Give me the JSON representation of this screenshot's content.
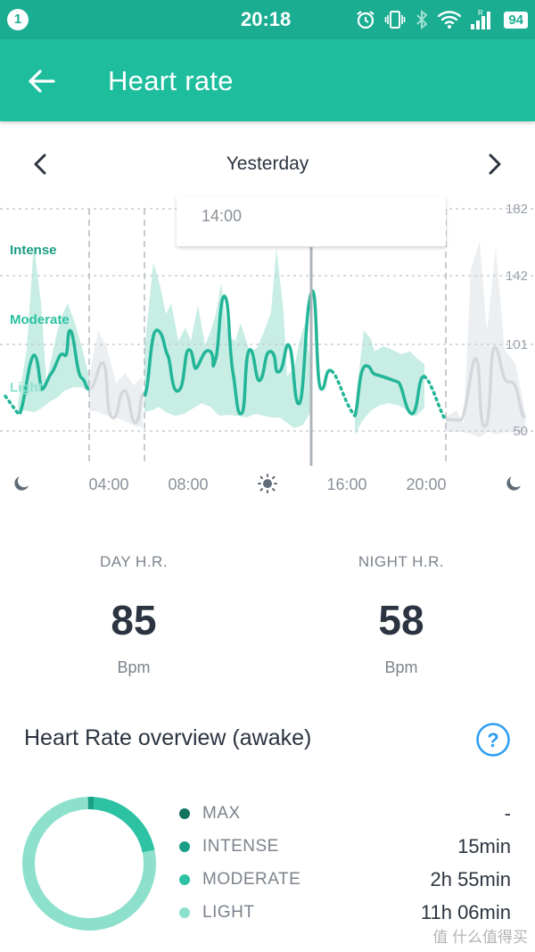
{
  "status_bar": {
    "notification_count": "1",
    "time": "20:18",
    "battery": "94"
  },
  "header": {
    "title": "Heart rate"
  },
  "date_nav": {
    "label": "Yesterday"
  },
  "chart_data": {
    "type": "line",
    "zones": [
      "Intense",
      "Moderate",
      "Light"
    ],
    "y_ticks": [
      "182",
      "142",
      "101",
      "50"
    ],
    "x_ticks": [
      "04:00",
      "08:00",
      "16:00",
      "20:00"
    ],
    "tooltip": "14:00",
    "legend_icons": [
      "moon-icon",
      "sun-icon",
      "moon-icon"
    ],
    "colors": {
      "line": "#22b597",
      "band": "#c7ede4",
      "night": "#d4d8dc",
      "grid": "#c9cdd2"
    }
  },
  "stats": {
    "day": {
      "label": "DAY H.R.",
      "value": "85",
      "unit": "Bpm"
    },
    "night": {
      "label": "NIGHT H.R.",
      "value": "58",
      "unit": "Bpm"
    }
  },
  "overview": {
    "title": "Heart Rate overview (awake)",
    "items": [
      {
        "label": "MAX",
        "value": "-",
        "color": "#13735f"
      },
      {
        "label": "INTENSE",
        "value": "15min",
        "color": "#1a9e86"
      },
      {
        "label": "MODERATE",
        "value": "2h 55min",
        "color": "#2cc2a3"
      },
      {
        "label": "LIGHT",
        "value": "11h 06min",
        "color": "#8de0cc"
      }
    ]
  },
  "watermark": "值 什么值得买"
}
